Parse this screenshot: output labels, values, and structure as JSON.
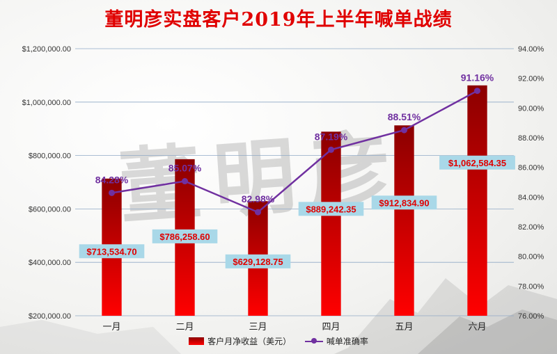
{
  "title": "董明彦实盘客户2019年上半年喊单战绩",
  "watermark_text": "董明彦",
  "colors": {
    "bar_top": "#8b0000",
    "bar_bottom": "#ff0000",
    "line": "#7030a0",
    "title": "#e00000",
    "label_box": "#a9d8e8"
  },
  "legend": [
    {
      "label": "客户月净收益（美元）",
      "kind": "bar"
    },
    {
      "label": "喊单准确率",
      "kind": "line"
    }
  ],
  "chart_data": {
    "type": "bar",
    "categories": [
      "一月",
      "二月",
      "三月",
      "四月",
      "五月",
      "六月"
    ],
    "series": [
      {
        "name": "客户月净收益（美元）",
        "type": "bar",
        "axis": "left",
        "values": [
          713534.7,
          786258.6,
          629128.75,
          889242.35,
          912834.9,
          1062584.35
        ],
        "labels": [
          "$713,534.70",
          "$786,258.60",
          "$629,128.75",
          "$889,242.35",
          "$912,834.90",
          "$1,062,584.35"
        ]
      },
      {
        "name": "喊单准确率",
        "type": "line",
        "axis": "right",
        "values": [
          84.28,
          85.07,
          82.98,
          87.19,
          88.51,
          91.16
        ],
        "labels": [
          "84.28%",
          "85.07%",
          "82.98%",
          "87.19%",
          "88.51%",
          "91.16%"
        ]
      }
    ],
    "y_left": {
      "range": [
        200000,
        1200000
      ],
      "ticks": [
        200000,
        400000,
        600000,
        800000,
        1000000,
        1200000
      ],
      "tick_labels": [
        "$200,000.00",
        "$400,000.00",
        "$600,000.00",
        "$800,000.00",
        "$1,000,000.00",
        "$1,200,000.00"
      ]
    },
    "y_right": {
      "range": [
        76,
        94
      ],
      "ticks": [
        76,
        78,
        80,
        82,
        84,
        86,
        88,
        90,
        92,
        94
      ],
      "tick_labels": [
        "76.00%",
        "78.00%",
        "80.00%",
        "82.00%",
        "84.00%",
        "86.00%",
        "88.00%",
        "90.00%",
        "92.00%",
        "94.00%"
      ]
    },
    "grid": true,
    "legend_position": "bottom"
  }
}
